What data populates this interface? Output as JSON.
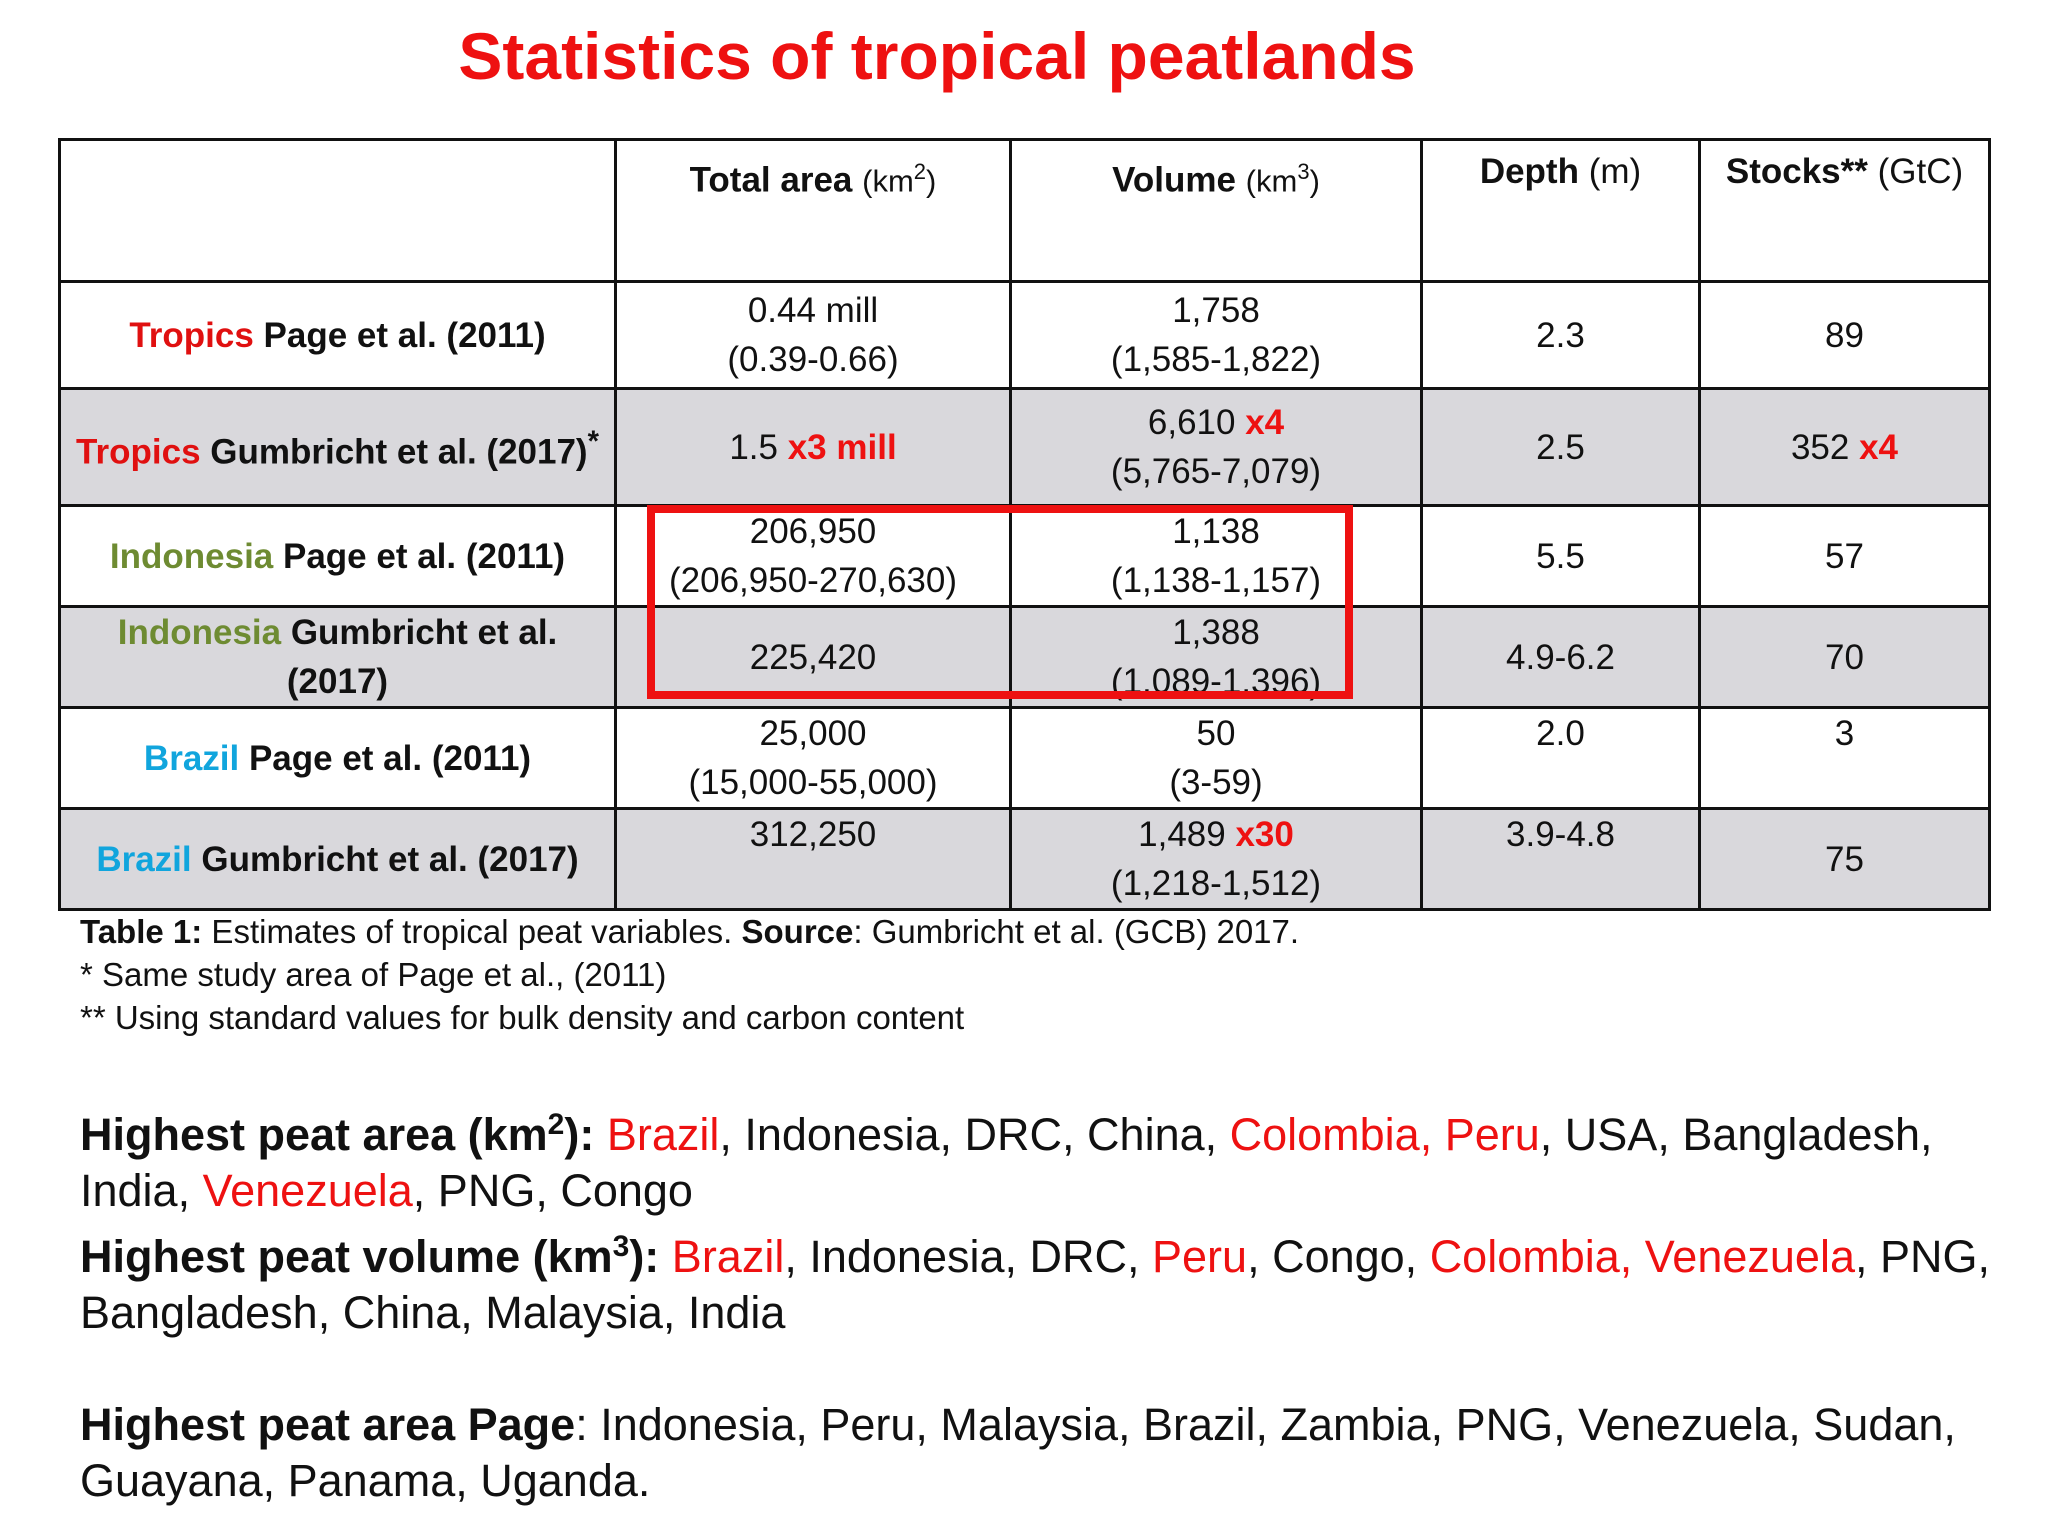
{
  "title": "Statistics of tropical peatlands",
  "colors": {
    "accent_red": "#ee1111",
    "tropics": "#e01010",
    "indonesia": "#6e8b32",
    "brazil": "#11a5dd",
    "row_shade": "#d9d8dc"
  },
  "table": {
    "headers": {
      "area": {
        "label": "Total area ",
        "unit": "(km",
        "sup": "2",
        "close": ")"
      },
      "volume": {
        "label": "Volume ",
        "unit": "(km",
        "sup": "3",
        "close": ")"
      },
      "depth": {
        "label": "Depth ",
        "unit": "(m)"
      },
      "stocks": {
        "label": "Stocks** ",
        "unit": "(GtC)"
      }
    },
    "rows": [
      {
        "region": "Tropics",
        "source": " Page et al. (2011)",
        "area_value": "0.44 mill",
        "area_range": "(0.39-0.66)",
        "volume_value": "1,758",
        "volume_range": "(1,585-1,822)",
        "depth": "2.3",
        "stocks": "89"
      },
      {
        "region": "Tropics",
        "source": " Gumbricht et al. (2017)",
        "source_mark": "*",
        "area_value": "1.5 ",
        "area_mult": "x3 mill",
        "volume_value": "6,610  ",
        "volume_mult": "x4",
        "volume_range": "(5,765-7,079)",
        "depth": "2.5",
        "stocks": "352 ",
        "stocks_mult": "x4"
      },
      {
        "region": "Indonesia",
        "source": " Page et al. (2011)",
        "area_value": "206,950",
        "area_range": "(206,950-270,630)",
        "volume_value": "1,138",
        "volume_range": "(1,138-1,157)",
        "depth": "5.5",
        "stocks": "57"
      },
      {
        "region": "Indonesia",
        "source": " Gumbricht et al. (2017)",
        "area_value": "225,420",
        "volume_value": "1,388",
        "volume_range": "(1,089-1,396)",
        "depth": "4.9-6.2",
        "stocks": "70"
      },
      {
        "region": "Brazil",
        "source": " Page et al. (2011)",
        "area_value": "25,000",
        "area_range": "(15,000-55,000)",
        "volume_value": "50",
        "volume_range": "(3-59)",
        "depth": "2.0",
        "stocks": "3"
      },
      {
        "region": "Brazil",
        "source": " Gumbricht et al. (2017)",
        "area_value": "312,250",
        "volume_value": "1,489 ",
        "volume_mult": "x30",
        "volume_range": "(1,218-1,512)",
        "depth": "3.9-4.8",
        "stocks": "75"
      }
    ]
  },
  "caption": {
    "table_label": "Table 1:",
    "table_text": "  Estimates of tropical peat variables. ",
    "source_label": "Source",
    "source_text": ": Gumbricht et al. (GCB) 2017.",
    "note1": "* Same study area of Page et al., (2011)",
    "note2": "** Using standard values for bulk density and carbon content"
  },
  "summary": {
    "area": {
      "label": "Highest peat area (km",
      "sup": "2",
      "label_end": "):",
      "c1": " Brazil",
      "t1": ", Indonesia, DRC, China, ",
      "c2": "Colombia, Peru",
      "t2": ", USA, Bangladesh, India, ",
      "c3": "Venezuela",
      "t3": ", PNG, Congo"
    },
    "volume": {
      "label": "Highest peat volume (km",
      "sup": "3",
      "label_end": "):",
      "c1": " Brazil",
      "t1": ", Indonesia, DRC, ",
      "c2": "Peru",
      "t2": ", Congo, ",
      "c3": "Colombia, Venezuela",
      "t3": ", PNG, Bangladesh, China, Malaysia, India"
    },
    "page": {
      "label": "Highest peat area Page",
      "text": ": Indonesia, Peru, Malaysia, Brazil, Zambia, PNG, Venezuela, Sudan, Guayana, Panama, Uganda."
    }
  }
}
